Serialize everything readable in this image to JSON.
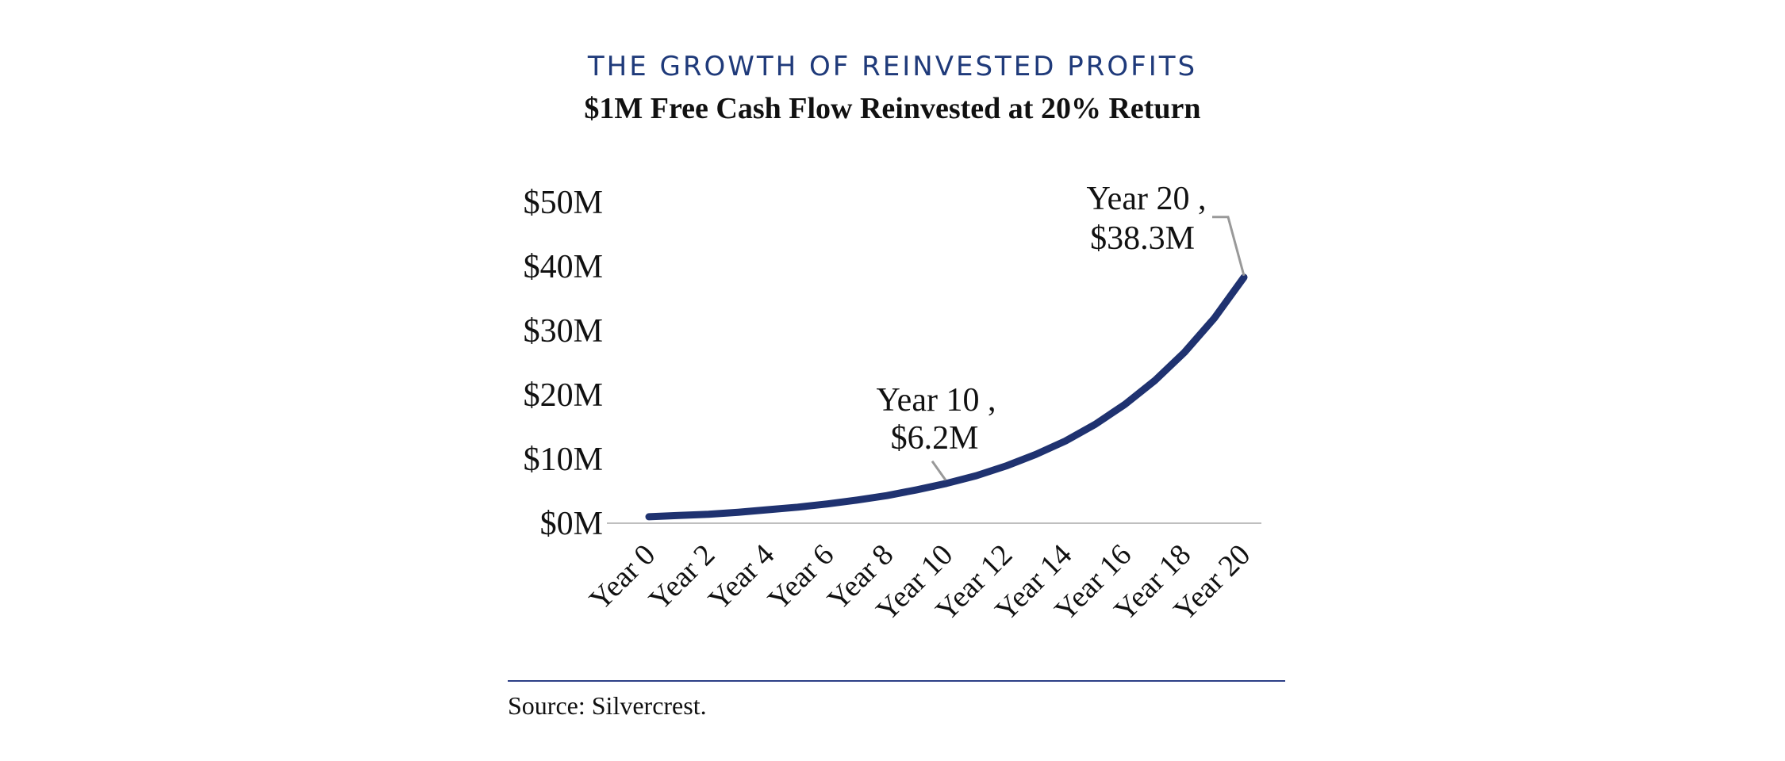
{
  "title": "THE GROWTH OF REINVESTED PROFITS",
  "subtitle": "$1M Free Cash Flow Reinvested at 20% Return",
  "source": "Source: Silvercrest.",
  "colors": {
    "line": "#1f3270",
    "title": "#1f3a7a",
    "axis": "#bfbfbf",
    "leader": "#999999",
    "rule": "#2c3f86"
  },
  "chart_data": {
    "type": "line",
    "title": "THE GROWTH OF REINVESTED PROFITS",
    "subtitle": "$1M Free Cash Flow Reinvested at 20% Return",
    "xlabel": "",
    "ylabel": "",
    "x": [
      "Year 0",
      "Year 1",
      "Year 2",
      "Year 3",
      "Year 4",
      "Year 5",
      "Year 6",
      "Year 7",
      "Year 8",
      "Year 9",
      "Year 10",
      "Year 11",
      "Year 12",
      "Year 13",
      "Year 14",
      "Year 15",
      "Year 16",
      "Year 17",
      "Year 18",
      "Year 19",
      "Year 20"
    ],
    "x_tick_labels": [
      "Year 0",
      "Year 2",
      "Year 4",
      "Year 6",
      "Year 8",
      "Year 10",
      "Year 12",
      "Year 14",
      "Year 16",
      "Year 18",
      "Year 20"
    ],
    "y_tick_values": [
      0,
      10,
      20,
      30,
      40,
      50
    ],
    "y_tick_labels": [
      "$0M",
      "$10M",
      "$20M",
      "$30M",
      "$40M",
      "$50M"
    ],
    "ylim": [
      0,
      50
    ],
    "grid": false,
    "series": [
      {
        "values": [
          1.0,
          1.2,
          1.4,
          1.7,
          2.1,
          2.5,
          3.0,
          3.6,
          4.3,
          5.2,
          6.2,
          7.4,
          8.9,
          10.7,
          12.8,
          15.4,
          18.5,
          22.2,
          26.6,
          31.9,
          38.3
        ]
      }
    ],
    "annotations": [
      {
        "x": "Year 10",
        "y": 6.2,
        "line1": "Year 10 ,",
        "line2": "$6.2M"
      },
      {
        "x": "Year 20",
        "y": 38.3,
        "line1": "Year 20 ,",
        "line2": "$38.3M"
      }
    ]
  }
}
